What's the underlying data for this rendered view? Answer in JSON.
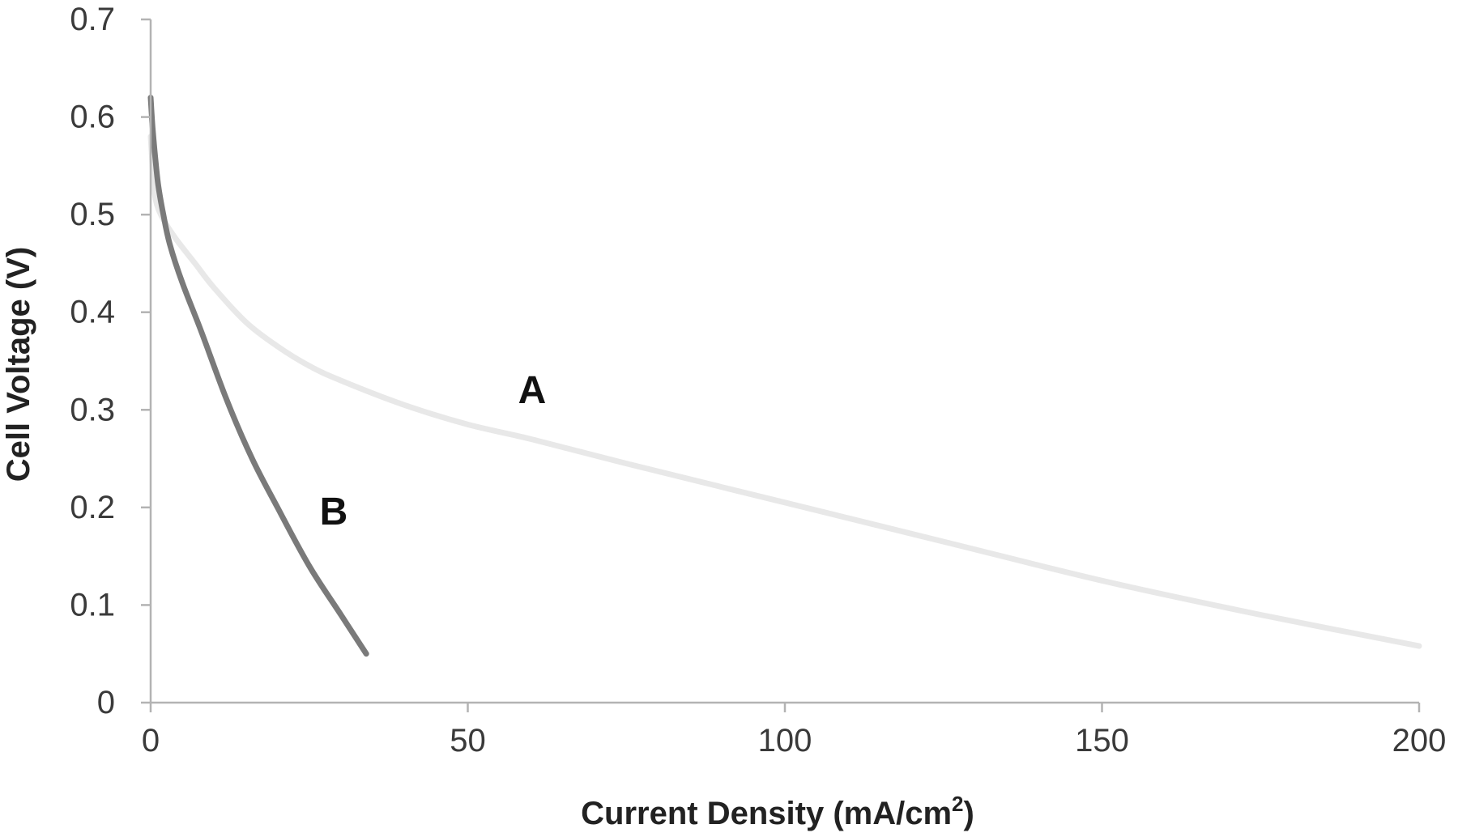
{
  "chart_data": {
    "type": "line",
    "title": "",
    "xlabel": "Current  Density (mA/cm",
    "xlabel_sup": "2",
    "xlabel_end": ")",
    "ylabel": "Cell Voltage (V)",
    "xlim": [
      0,
      200
    ],
    "ylim": [
      0,
      0.7
    ],
    "xticks": [
      "0",
      "50",
      "100",
      "150",
      "200"
    ],
    "yticks": [
      "0",
      "0.1",
      "0.2",
      "0.3",
      "0.4",
      "0.5",
      "0.6",
      "0.7"
    ],
    "grid": false,
    "legend": "none",
    "series": [
      {
        "name": "A",
        "color": "#e8e8e8",
        "x": [
          0,
          0.5,
          1,
          2,
          4,
          7,
          10,
          15,
          20,
          25,
          30,
          40,
          50,
          60,
          75,
          100,
          125,
          150,
          175,
          200
        ],
        "y": [
          0.58,
          0.53,
          0.51,
          0.495,
          0.475,
          0.45,
          0.425,
          0.39,
          0.365,
          0.345,
          0.33,
          0.305,
          0.285,
          0.27,
          0.245,
          0.205,
          0.165,
          0.125,
          0.09,
          0.058
        ]
      },
      {
        "name": "B",
        "color": "#7a7a7a",
        "x": [
          0,
          0.3,
          0.7,
          1.2,
          2,
          3,
          5,
          8,
          12,
          16,
          20,
          25,
          30,
          34
        ],
        "y": [
          0.62,
          0.59,
          0.56,
          0.53,
          0.5,
          0.47,
          0.43,
          0.38,
          0.31,
          0.25,
          0.2,
          0.14,
          0.09,
          0.05
        ]
      }
    ]
  }
}
